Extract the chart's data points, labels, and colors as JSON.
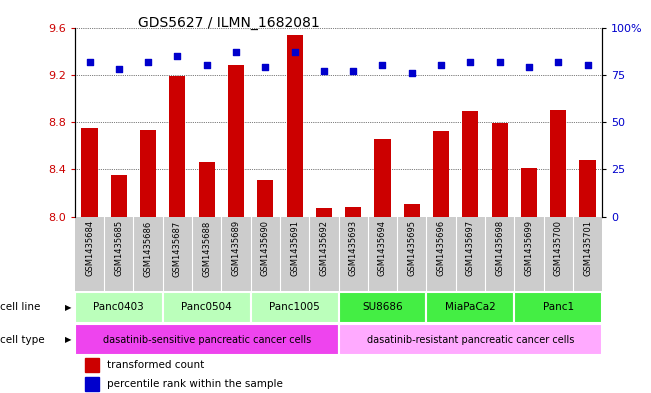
{
  "title": "GDS5627 / ILMN_1682081",
  "samples": [
    "GSM1435684",
    "GSM1435685",
    "GSM1435686",
    "GSM1435687",
    "GSM1435688",
    "GSM1435689",
    "GSM1435690",
    "GSM1435691",
    "GSM1435692",
    "GSM1435693",
    "GSM1435694",
    "GSM1435695",
    "GSM1435696",
    "GSM1435697",
    "GSM1435698",
    "GSM1435699",
    "GSM1435700",
    "GSM1435701"
  ],
  "transformed_count": [
    8.75,
    8.35,
    8.73,
    9.19,
    8.46,
    9.28,
    8.31,
    9.54,
    8.07,
    8.08,
    8.66,
    8.11,
    8.72,
    8.89,
    8.79,
    8.41,
    8.9,
    8.48
  ],
  "percentile_rank": [
    82,
    78,
    82,
    85,
    80,
    87,
    79,
    87,
    77,
    77,
    80,
    76,
    80,
    82,
    82,
    79,
    82,
    80
  ],
  "ylim_left": [
    8.0,
    9.6
  ],
  "ylim_right": [
    0,
    100
  ],
  "yticks_left": [
    8.0,
    8.4,
    8.8,
    9.2,
    9.6
  ],
  "yticks_right": [
    0,
    25,
    50,
    75,
    100
  ],
  "ytick_labels_right": [
    "0",
    "25",
    "50",
    "75",
    "100%"
  ],
  "cell_lines": [
    {
      "name": "Panc0403",
      "start": 0,
      "end": 3,
      "color": "#bbffbb"
    },
    {
      "name": "Panc0504",
      "start": 3,
      "end": 6,
      "color": "#bbffbb"
    },
    {
      "name": "Panc1005",
      "start": 6,
      "end": 9,
      "color": "#bbffbb"
    },
    {
      "name": "SU8686",
      "start": 9,
      "end": 12,
      "color": "#44ee44"
    },
    {
      "name": "MiaPaCa2",
      "start": 12,
      "end": 15,
      "color": "#44ee44"
    },
    {
      "name": "Panc1",
      "start": 15,
      "end": 18,
      "color": "#44ee44"
    }
  ],
  "cell_types": [
    {
      "name": "dasatinib-sensitive pancreatic cancer cells",
      "start": 0,
      "end": 9,
      "color": "#ee44ee"
    },
    {
      "name": "dasatinib-resistant pancreatic cancer cells",
      "start": 9,
      "end": 18,
      "color": "#ffaaff"
    }
  ],
  "bar_color": "#cc0000",
  "dot_color": "#0000cc",
  "tick_label_color_left": "#cc0000",
  "tick_label_color_right": "#0000cc",
  "xlabel_row_bg": "#cccccc",
  "legend_red_label": "transformed count",
  "legend_blue_label": "percentile rank within the sample"
}
